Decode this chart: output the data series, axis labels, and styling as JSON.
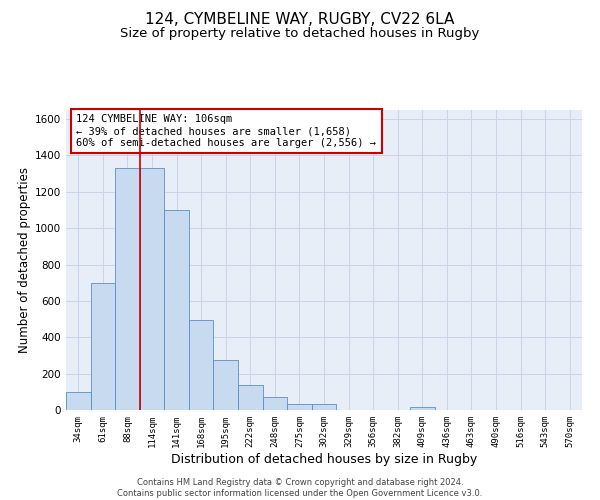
{
  "title1": "124, CYMBELINE WAY, RUGBY, CV22 6LA",
  "title2": "Size of property relative to detached houses in Rugby",
  "xlabel": "Distribution of detached houses by size in Rugby",
  "ylabel": "Number of detached properties",
  "categories": [
    "34sqm",
    "61sqm",
    "88sqm",
    "114sqm",
    "141sqm",
    "168sqm",
    "195sqm",
    "222sqm",
    "248sqm",
    "275sqm",
    "302sqm",
    "329sqm",
    "356sqm",
    "382sqm",
    "409sqm",
    "436sqm",
    "463sqm",
    "490sqm",
    "516sqm",
    "543sqm",
    "570sqm"
  ],
  "bar_heights": [
    97,
    700,
    1330,
    1330,
    1100,
    497,
    275,
    137,
    72,
    35,
    35,
    0,
    0,
    0,
    14,
    0,
    0,
    0,
    0,
    0,
    0
  ],
  "bar_color": "#c8daf0",
  "bar_edge_color": "#5b8dc8",
  "vline_x": 2.5,
  "vline_color": "#cc0000",
  "annotation_text": "124 CYMBELINE WAY: 106sqm\n← 39% of detached houses are smaller (1,658)\n60% of semi-detached houses are larger (2,556) →",
  "annotation_box_color": "#cc0000",
  "ylim": [
    0,
    1650
  ],
  "yticks": [
    0,
    200,
    400,
    600,
    800,
    1000,
    1200,
    1400,
    1600
  ],
  "grid_color": "#c8d4e8",
  "bg_color": "#e8eef8",
  "footer": "Contains HM Land Registry data © Crown copyright and database right 2024.\nContains public sector information licensed under the Open Government Licence v3.0.",
  "title1_fontsize": 11,
  "title2_fontsize": 9.5,
  "xlabel_fontsize": 9,
  "ylabel_fontsize": 8.5,
  "annotation_fontsize": 7.5,
  "footer_fontsize": 6
}
